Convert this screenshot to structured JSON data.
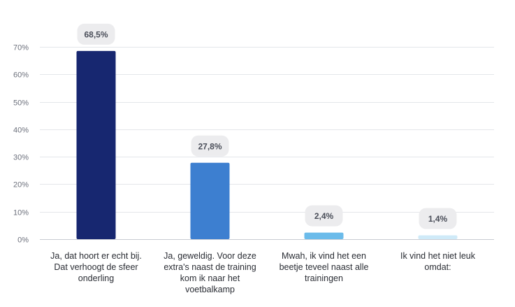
{
  "chart_data": {
    "type": "bar",
    "title": "",
    "xlabel": "",
    "ylabel": "",
    "ylim": [
      0,
      70
    ],
    "yticks": [
      0,
      10,
      20,
      30,
      40,
      50,
      60,
      70
    ],
    "ytick_labels": [
      "0%",
      "10%",
      "20%",
      "30%",
      "40%",
      "50%",
      "60%",
      "70%"
    ],
    "grid": true,
    "categories": [
      [
        "Ja, dat hoort er echt bij.",
        "Dat verhoogt de sfeer",
        "onderling"
      ],
      [
        "Ja, geweldig. Voor deze",
        "extra's naast de training",
        "kom ik naar het",
        "voetbalkamp"
      ],
      [
        "Mwah, ik vind het een",
        "beetje teveel naast alle",
        "trainingen"
      ],
      [
        "Ik vind het niet leuk",
        "omdat:"
      ]
    ],
    "values": [
      68.5,
      27.8,
      2.4,
      1.4
    ],
    "value_labels": [
      "68,5%",
      "27,8%",
      "2,4%",
      "1,4%"
    ],
    "colors": [
      "#172770",
      "#3d7fd0",
      "#6bbbea",
      "#cfeaf8"
    ]
  }
}
